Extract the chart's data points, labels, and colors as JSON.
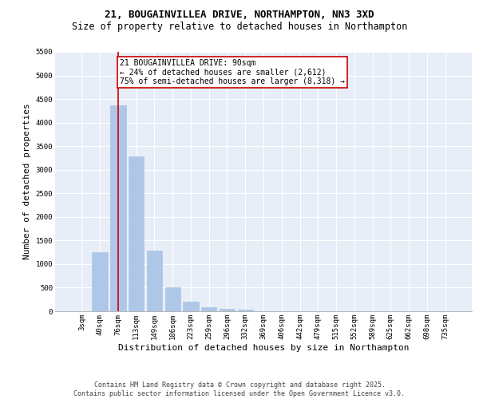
{
  "title_line1": "21, BOUGAINVILLEA DRIVE, NORTHAMPTON, NN3 3XD",
  "title_line2": "Size of property relative to detached houses in Northampton",
  "xlabel": "Distribution of detached houses by size in Northampton",
  "ylabel": "Number of detached properties",
  "categories": [
    "3sqm",
    "40sqm",
    "76sqm",
    "113sqm",
    "149sqm",
    "186sqm",
    "223sqm",
    "259sqm",
    "296sqm",
    "332sqm",
    "369sqm",
    "406sqm",
    "442sqm",
    "479sqm",
    "515sqm",
    "552sqm",
    "589sqm",
    "625sqm",
    "662sqm",
    "698sqm",
    "735sqm"
  ],
  "values": [
    0,
    1260,
    4370,
    3290,
    1280,
    500,
    205,
    80,
    55,
    35,
    0,
    0,
    0,
    0,
    0,
    0,
    0,
    0,
    0,
    0,
    0
  ],
  "bar_color": "#aec6e8",
  "bar_edgecolor": "#aec6e8",
  "vline_x_index": 2,
  "vline_color": "#cc0000",
  "annotation_text": "21 BOUGAINVILLEA DRIVE: 90sqm\n← 24% of detached houses are smaller (2,612)\n75% of semi-detached houses are larger (8,318) →",
  "annotation_box_edgecolor": "#cc0000",
  "ylim": [
    0,
    5500
  ],
  "yticks": [
    0,
    500,
    1000,
    1500,
    2000,
    2500,
    3000,
    3500,
    4000,
    4500,
    5000,
    5500
  ],
  "background_color": "#e8eef8",
  "grid_color": "#ffffff",
  "footer_line1": "Contains HM Land Registry data © Crown copyright and database right 2025.",
  "footer_line2": "Contains public sector information licensed under the Open Government Licence v3.0.",
  "title_fontsize": 9,
  "subtitle_fontsize": 8.5,
  "axis_label_fontsize": 8,
  "tick_fontsize": 6.5,
  "annotation_fontsize": 7,
  "footer_fontsize": 6
}
